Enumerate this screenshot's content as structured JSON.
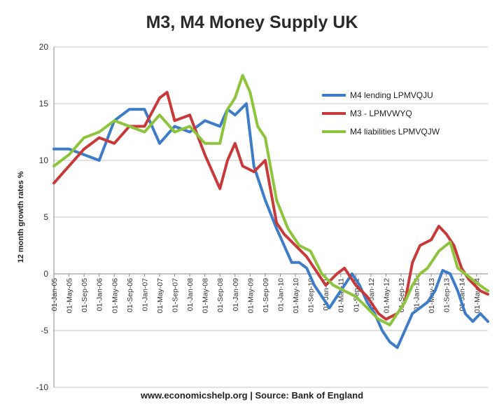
{
  "chart_data": {
    "type": "line",
    "title": "M3, M4 Money Supply UK",
    "ylabel": "12 month growth rates %",
    "xlabel": "",
    "ylim": [
      -10,
      20
    ],
    "yticks": [
      -10,
      -5,
      0,
      5,
      10,
      15,
      20
    ],
    "grid": true,
    "legend_position": "top-right",
    "x_range": [
      "2005-01",
      "2014-08"
    ],
    "x_tick_labels": [
      "01-Jan-05",
      "01-May-05",
      "01-Sep-05",
      "01-Jan-06",
      "01-May-06",
      "01-Sep-06",
      "01-Jan-07",
      "01-May-07",
      "01-Sep-07",
      "01-Jan-08",
      "01-May-08",
      "01-Sep-08",
      "01-Jan-09",
      "01-May-09",
      "01-Sep-09",
      "01-Jan-10",
      "01-May-10",
      "01-Sep-10",
      "01-Jan-11",
      "01-May-11",
      "01-Sep-11",
      "01-Jan-12",
      "01-May-12",
      "01-Sep-12",
      "01-Jan-13",
      "01-May-13",
      "01-Sep-13",
      "01-Jan-14",
      "01-May-14"
    ],
    "series": [
      {
        "name": "M4 lending LPMVQJU",
        "color": "#3d7cc9",
        "points": [
          [
            "2005-01",
            11
          ],
          [
            "2005-05",
            11
          ],
          [
            "2005-09",
            10.5
          ],
          [
            "2006-01",
            10
          ],
          [
            "2006-05",
            13.5
          ],
          [
            "2006-09",
            14.5
          ],
          [
            "2007-01",
            14.5
          ],
          [
            "2007-05",
            11.5
          ],
          [
            "2007-09",
            13
          ],
          [
            "2008-01",
            12.5
          ],
          [
            "2008-05",
            13.5
          ],
          [
            "2008-09",
            13
          ],
          [
            "2008-11",
            14.5
          ],
          [
            "2009-01",
            14
          ],
          [
            "2009-04",
            15
          ],
          [
            "2009-06",
            9.5
          ],
          [
            "2009-09",
            6.5
          ],
          [
            "2009-12",
            4
          ],
          [
            "2010-02",
            2.5
          ],
          [
            "2010-04",
            1
          ],
          [
            "2010-06",
            1
          ],
          [
            "2010-08",
            0.5
          ],
          [
            "2010-10",
            -1
          ],
          [
            "2010-12",
            -2
          ],
          [
            "2011-02",
            -3
          ],
          [
            "2011-04",
            -2
          ],
          [
            "2011-06",
            -1
          ],
          [
            "2011-08",
            0
          ],
          [
            "2011-10",
            -1
          ],
          [
            "2011-12",
            -2.5
          ],
          [
            "2012-02",
            -3.5
          ],
          [
            "2012-04",
            -5
          ],
          [
            "2012-06",
            -6
          ],
          [
            "2012-08",
            -6.5
          ],
          [
            "2012-10",
            -5
          ],
          [
            "2012-12",
            -3.5
          ],
          [
            "2013-02",
            -3
          ],
          [
            "2013-04",
            -2.5
          ],
          [
            "2013-06",
            -1.5
          ],
          [
            "2013-08",
            0.3
          ],
          [
            "2013-10",
            0
          ],
          [
            "2013-12",
            -1.5
          ],
          [
            "2014-02",
            -3.5
          ],
          [
            "2014-04",
            -4.2
          ],
          [
            "2014-06",
            -3.5
          ],
          [
            "2014-08",
            -4.2
          ]
        ]
      },
      {
        "name": "M3 - LPMVWYQ",
        "color": "#c9393a",
        "points": [
          [
            "2005-01",
            8
          ],
          [
            "2005-05",
            9.5
          ],
          [
            "2005-09",
            11
          ],
          [
            "2006-01",
            12
          ],
          [
            "2006-05",
            11.5
          ],
          [
            "2006-09",
            13
          ],
          [
            "2007-01",
            13
          ],
          [
            "2007-05",
            15.5
          ],
          [
            "2007-07",
            16
          ],
          [
            "2007-09",
            13.5
          ],
          [
            "2008-01",
            14
          ],
          [
            "2008-05",
            10.5
          ],
          [
            "2008-09",
            7.5
          ],
          [
            "2008-11",
            10
          ],
          [
            "2009-01",
            11.5
          ],
          [
            "2009-03",
            9.5
          ],
          [
            "2009-06",
            9
          ],
          [
            "2009-09",
            10
          ],
          [
            "2009-12",
            4.5
          ],
          [
            "2010-02",
            3.5
          ],
          [
            "2010-05",
            2.5
          ],
          [
            "2010-08",
            1.5
          ],
          [
            "2010-11",
            0
          ],
          [
            "2011-01",
            -1
          ],
          [
            "2011-04",
            0
          ],
          [
            "2011-06",
            0.5
          ],
          [
            "2011-09",
            -1
          ],
          [
            "2011-12",
            -2
          ],
          [
            "2012-03",
            -3.5
          ],
          [
            "2012-05",
            -4
          ],
          [
            "2012-08",
            -3.5
          ],
          [
            "2012-10",
            -2.5
          ],
          [
            "2012-12",
            1
          ],
          [
            "2013-02",
            2.5
          ],
          [
            "2013-05",
            3
          ],
          [
            "2013-07",
            4.2
          ],
          [
            "2013-09",
            3.5
          ],
          [
            "2013-11",
            2.5
          ],
          [
            "2014-01",
            0.5
          ],
          [
            "2014-03",
            -0.5
          ],
          [
            "2014-06",
            -1.5
          ],
          [
            "2014-08",
            -1.8
          ]
        ]
      },
      {
        "name": "M4 liabilities LPMVQJW",
        "color": "#8ec43c",
        "points": [
          [
            "2005-01",
            9.5
          ],
          [
            "2005-05",
            10.5
          ],
          [
            "2005-09",
            12
          ],
          [
            "2006-01",
            12.5
          ],
          [
            "2006-05",
            13.5
          ],
          [
            "2006-09",
            13
          ],
          [
            "2007-01",
            12.5
          ],
          [
            "2007-05",
            14
          ],
          [
            "2007-09",
            12.5
          ],
          [
            "2008-01",
            13
          ],
          [
            "2008-05",
            11.5
          ],
          [
            "2008-09",
            11.5
          ],
          [
            "2008-11",
            14.5
          ],
          [
            "2009-01",
            15.5
          ],
          [
            "2009-03",
            17.5
          ],
          [
            "2009-05",
            16
          ],
          [
            "2009-07",
            13
          ],
          [
            "2009-09",
            12
          ],
          [
            "2009-12",
            6.5
          ],
          [
            "2010-03",
            4
          ],
          [
            "2010-06",
            2.5
          ],
          [
            "2010-09",
            2
          ],
          [
            "2010-12",
            0
          ],
          [
            "2011-03",
            -1
          ],
          [
            "2011-06",
            -1.5
          ],
          [
            "2011-09",
            -2
          ],
          [
            "2011-12",
            -3
          ],
          [
            "2012-03",
            -4
          ],
          [
            "2012-06",
            -4.5
          ],
          [
            "2012-08",
            -3.5
          ],
          [
            "2012-10",
            -2.5
          ],
          [
            "2012-12",
            -1
          ],
          [
            "2013-02",
            0
          ],
          [
            "2013-04",
            0.5
          ],
          [
            "2013-07",
            2
          ],
          [
            "2013-10",
            2.8
          ],
          [
            "2013-12",
            0.5
          ],
          [
            "2014-02",
            0
          ],
          [
            "2014-05",
            -0.8
          ],
          [
            "2014-08",
            -1.5
          ]
        ]
      }
    ]
  },
  "footer": "www.economicshelp.org | Source: Bank of England"
}
